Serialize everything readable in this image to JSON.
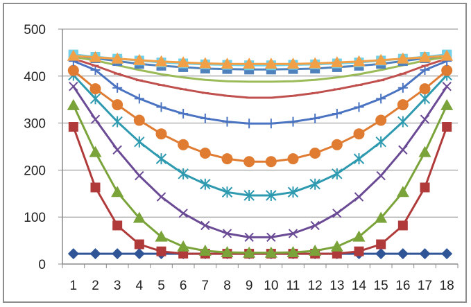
{
  "chart_data": {
    "type": "line",
    "title": "",
    "xlabel": "",
    "ylabel": "",
    "categories": [
      "1",
      "2",
      "3",
      "4",
      "5",
      "6",
      "7",
      "8",
      "9",
      "10",
      "11",
      "12",
      "13",
      "14",
      "15",
      "16",
      "17",
      "18"
    ],
    "ylim": [
      0,
      500
    ],
    "yticks": [
      0,
      100,
      200,
      300,
      400,
      500
    ],
    "grid": "horizontal",
    "legend": "none",
    "series": [
      {
        "color": "#2f5597",
        "marker": "diamond",
        "values": [
          22,
          22,
          22,
          22,
          22,
          22,
          22,
          22,
          22,
          22,
          22,
          22,
          22,
          22,
          22,
          22,
          22,
          22
        ]
      },
      {
        "color": "#b03a3a",
        "marker": "square",
        "values": [
          292,
          163,
          82,
          42,
          27,
          22,
          22,
          22,
          22,
          22,
          22,
          22,
          22,
          27,
          42,
          82,
          163,
          292
        ]
      },
      {
        "color": "#7aa33a",
        "marker": "triangle",
        "values": [
          338,
          238,
          153,
          98,
          58,
          37,
          28,
          25,
          24,
          24,
          25,
          28,
          37,
          58,
          98,
          153,
          238,
          338
        ]
      },
      {
        "color": "#6a4a95",
        "marker": "x",
        "values": [
          378,
          308,
          243,
          188,
          143,
          108,
          82,
          65,
          57,
          57,
          65,
          82,
          108,
          143,
          188,
          243,
          308,
          378
        ]
      },
      {
        "color": "#2e9ab0",
        "marker": "star",
        "values": [
          402,
          352,
          303,
          260,
          224,
          192,
          170,
          153,
          146,
          146,
          153,
          170,
          192,
          224,
          260,
          303,
          352,
          402
        ]
      },
      {
        "color": "#e07b32",
        "marker": "circle",
        "values": [
          412,
          373,
          339,
          306,
          277,
          254,
          236,
          224,
          218,
          218,
          224,
          236,
          254,
          277,
          306,
          339,
          373,
          412
        ]
      },
      {
        "color": "#4a73c2",
        "marker": "plus",
        "values": [
          432,
          413,
          375,
          352,
          334,
          320,
          310,
          303,
          299,
          299,
          303,
          310,
          320,
          334,
          352,
          375,
          413,
          432
        ]
      },
      {
        "color": "#c0504d",
        "marker": "dash",
        "values": [
          437,
          422,
          405,
          391,
          381,
          372,
          364,
          358,
          354,
          354,
          358,
          364,
          372,
          381,
          391,
          405,
          422,
          437
        ]
      },
      {
        "color": "#9bbb59",
        "marker": "none",
        "values": [
          441,
          433,
          423,
          413,
          404,
          397,
          392,
          389,
          388,
          388,
          389,
          392,
          397,
          404,
          413,
          423,
          433,
          441
        ]
      },
      {
        "color": "#4f81bd",
        "marker": "square",
        "values": [
          444,
          438,
          432,
          426,
          422,
          419,
          416,
          415,
          414,
          414,
          415,
          416,
          419,
          422,
          426,
          432,
          438,
          444
        ]
      },
      {
        "color": "#70d0e8",
        "marker": "square",
        "values": [
          446,
          441,
          437,
          433,
          429,
          427,
          425,
          424,
          423,
          423,
          424,
          425,
          427,
          429,
          433,
          437,
          441,
          446
        ]
      },
      {
        "color": "#f2a048",
        "marker": "triangle",
        "values": [
          443,
          440,
          437,
          434,
          431,
          429,
          427,
          426,
          426,
          426,
          426,
          427,
          429,
          431,
          434,
          437,
          440,
          443
        ]
      }
    ]
  }
}
